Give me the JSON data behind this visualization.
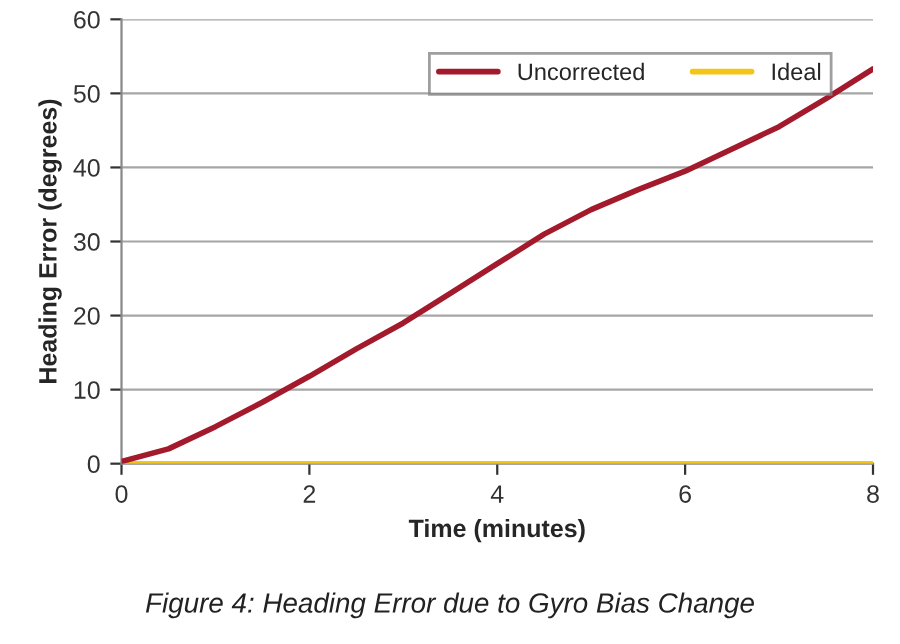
{
  "chart_data": {
    "type": "line",
    "xlabel": "Time (minutes)",
    "ylabel": "Heading Error (degrees)",
    "annotations": [
      "Figure 4: Heading Error due to Gyro Bias Change"
    ],
    "x": [
      0,
      0.5,
      1,
      1.5,
      2,
      2.5,
      3,
      3.5,
      4,
      4.5,
      5,
      5.5,
      6,
      6.5,
      7,
      7.5,
      8
    ],
    "series": [
      {
        "name": "Uncorrected",
        "color": "#a31a2c",
        "values": [
          0.3,
          2,
          5,
          8.3,
          11.8,
          15.5,
          19,
          23,
          27,
          31,
          34.3,
          37,
          39.5,
          42.5,
          45.5,
          49.3,
          53.3
        ]
      },
      {
        "name": "Ideal",
        "color": "#f2c517",
        "values": [
          0,
          0,
          0,
          0,
          0,
          0,
          0,
          0,
          0,
          0,
          0,
          0,
          0,
          0,
          0,
          0,
          0
        ]
      }
    ],
    "xlim": [
      0,
      8
    ],
    "xticks": [
      0,
      2,
      4,
      6,
      8
    ],
    "ylim": [
      0,
      60
    ],
    "yticks": [
      0,
      10,
      20,
      30,
      40,
      50,
      60
    ],
    "grid": "y",
    "legend": "top right",
    "marker": "none",
    "line_style": "solid"
  }
}
